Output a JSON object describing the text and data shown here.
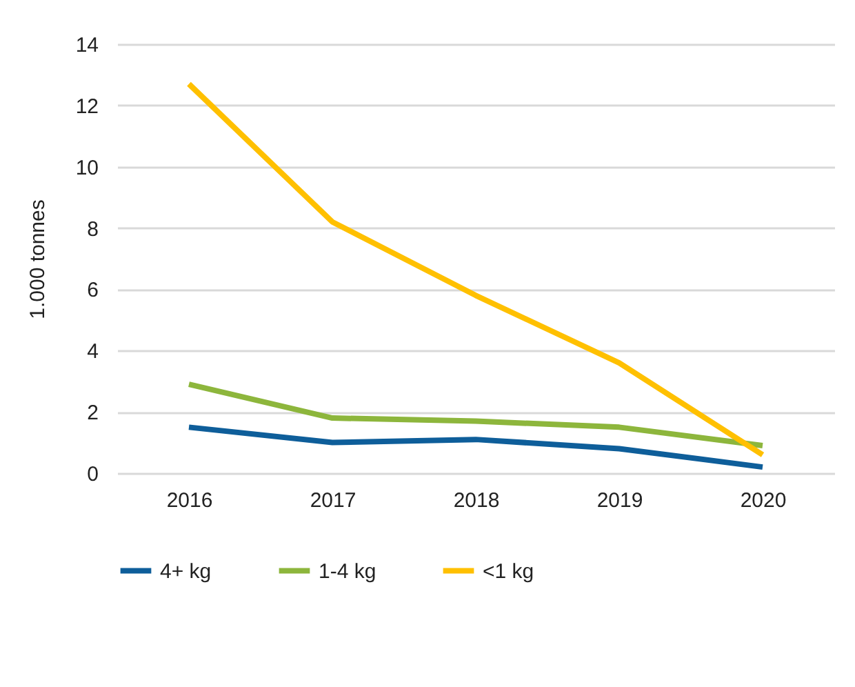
{
  "chart_data": {
    "type": "line",
    "ylabel": "1.000 tonnes",
    "categories": [
      "2016",
      "2017",
      "2018",
      "2019",
      "2020"
    ],
    "series": [
      {
        "name": "4+ kg",
        "color": "#0e5e9a",
        "values": [
          1.5,
          1.0,
          1.1,
          0.8,
          0.2
        ]
      },
      {
        "name": "1-4 kg",
        "color": "#8db63c",
        "values": [
          2.9,
          1.8,
          1.7,
          1.5,
          0.9
        ]
      },
      {
        "name": "<1 kg",
        "color": "#ffc000",
        "values": [
          12.7,
          8.2,
          5.8,
          3.6,
          0.6
        ]
      }
    ],
    "ylim": [
      0,
      14
    ],
    "yticks": [
      0,
      2,
      4,
      6,
      8,
      10,
      12,
      14
    ],
    "grid": "y",
    "legend": "bottom",
    "line_style": "solid"
  }
}
